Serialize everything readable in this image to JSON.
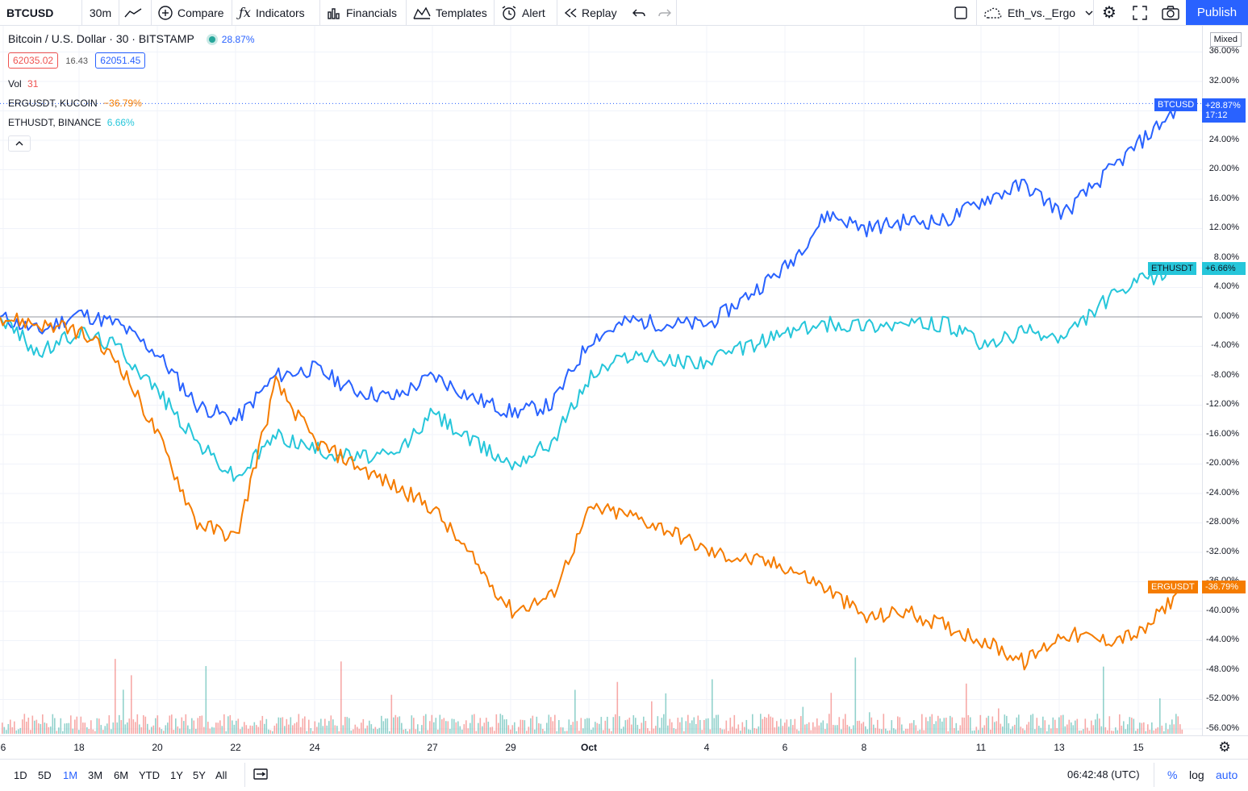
{
  "toolbar": {
    "symbol": "BTCUSD",
    "interval": "30m",
    "compare": "Compare",
    "indicators": "Indicators",
    "financials": "Financials",
    "templates": "Templates",
    "alert": "Alert",
    "replay": "Replay",
    "layout_name": "Eth_vs._Ergo",
    "publish": "Publish"
  },
  "legend": {
    "title": "Bitcoin / U.S. Dollar · 30 · BITSTAMP",
    "change": "28.87%",
    "bid": "62035.02",
    "spread": "16.43",
    "ask": "62051.45",
    "vol_label": "Vol",
    "vol_value": "31",
    "compare_1_name": "ERGUSDT, KUCOIN",
    "compare_1_value": "−36.79%",
    "compare_2_name": "ETHUSDT, BINANCE",
    "compare_2_value": "6.66%"
  },
  "price_scale": {
    "mode": "Mixed",
    "ticks": [
      "36.00%",
      "32.00%",
      "28.00%",
      "24.00%",
      "20.00%",
      "16.00%",
      "12.00%",
      "8.00%",
      "4.00%",
      "0.00%",
      "-4.00%",
      "-8.00%",
      "-12.00%",
      "-16.00%",
      "-20.00%",
      "-24.00%",
      "-28.00%",
      "-32.00%",
      "-36.00%",
      "-40.00%",
      "-44.00%",
      "-48.00%",
      "-52.00%",
      "-56.00%"
    ]
  },
  "price_labels": {
    "btc_symbol": "BTCUSD",
    "btc_value": "+28.87%",
    "btc_countdown": "17:12",
    "eth_symbol": "ETHUSDT",
    "eth_value": "+6.66%",
    "erg_symbol": "ERGUSDT",
    "erg_value": "-36.79%"
  },
  "time_axis": {
    "labels": [
      "6",
      "18",
      "20",
      "22",
      "24",
      "27",
      "29",
      "Oct",
      "4",
      "6",
      "8",
      "11",
      "13",
      "15"
    ]
  },
  "bottom_bar": {
    "ranges": [
      "1D",
      "5D",
      "1M",
      "3M",
      "6M",
      "YTD",
      "1Y",
      "5Y",
      "All"
    ],
    "active_range": "1M",
    "clock": "06:42:48 (UTC)",
    "percent": "%",
    "log": "log",
    "auto": "auto"
  },
  "colors": {
    "btc": "#2962ff",
    "eth": "#26c6da",
    "erg": "#f57c00",
    "vol_up": "#26a69a",
    "vol_down": "#ef5350"
  },
  "chart_data": {
    "type": "line",
    "ylabel": "",
    "ylim": [
      -57,
      37
    ],
    "x": [
      "Sep 16",
      "Sep 17",
      "Sep 18",
      "Sep 19",
      "Sep 20",
      "Sep 21",
      "Sep 22",
      "Sep 23",
      "Sep 24",
      "Sep 25",
      "Sep 26",
      "Sep 27",
      "Sep 28",
      "Sep 29",
      "Sep 30",
      "Oct 1",
      "Oct 2",
      "Oct 3",
      "Oct 4",
      "Oct 5",
      "Oct 6",
      "Oct 7",
      "Oct 8",
      "Oct 9",
      "Oct 10",
      "Oct 11",
      "Oct 12",
      "Oct 13",
      "Oct 14",
      "Oct 15",
      "Oct 16"
    ],
    "series": [
      {
        "name": "BTCUSD",
        "values": [
          0,
          -2,
          0.5,
          -1,
          -5,
          -12,
          -14,
          -8,
          -7,
          -10,
          -11,
          -8,
          -11,
          -13,
          -12,
          -3,
          -0.5,
          -1,
          -1,
          3,
          7,
          14,
          12,
          13,
          13,
          16,
          18,
          14,
          19,
          24,
          29
        ]
      },
      {
        "name": "ETHUSDT",
        "values": [
          0,
          -5,
          -2,
          -4,
          -10,
          -17,
          -22,
          -16,
          -18,
          -19,
          -19,
          -13,
          -17,
          -20,
          -17,
          -8,
          -5,
          -6,
          -6,
          -4,
          -2,
          -1,
          -1,
          -1,
          -1,
          -4,
          -2,
          -3,
          2,
          5,
          6.7
        ]
      },
      {
        "name": "ERGUSDT",
        "values": [
          0,
          -1,
          -2,
          -6,
          -16,
          -28,
          -30,
          -9,
          -17,
          -20,
          -23,
          -26,
          -33,
          -40,
          -38,
          -26,
          -27,
          -29,
          -32,
          -33,
          -34,
          -37,
          -41,
          -40,
          -42,
          -44,
          -47,
          -43,
          -44,
          -43,
          -36.8
        ]
      }
    ]
  }
}
